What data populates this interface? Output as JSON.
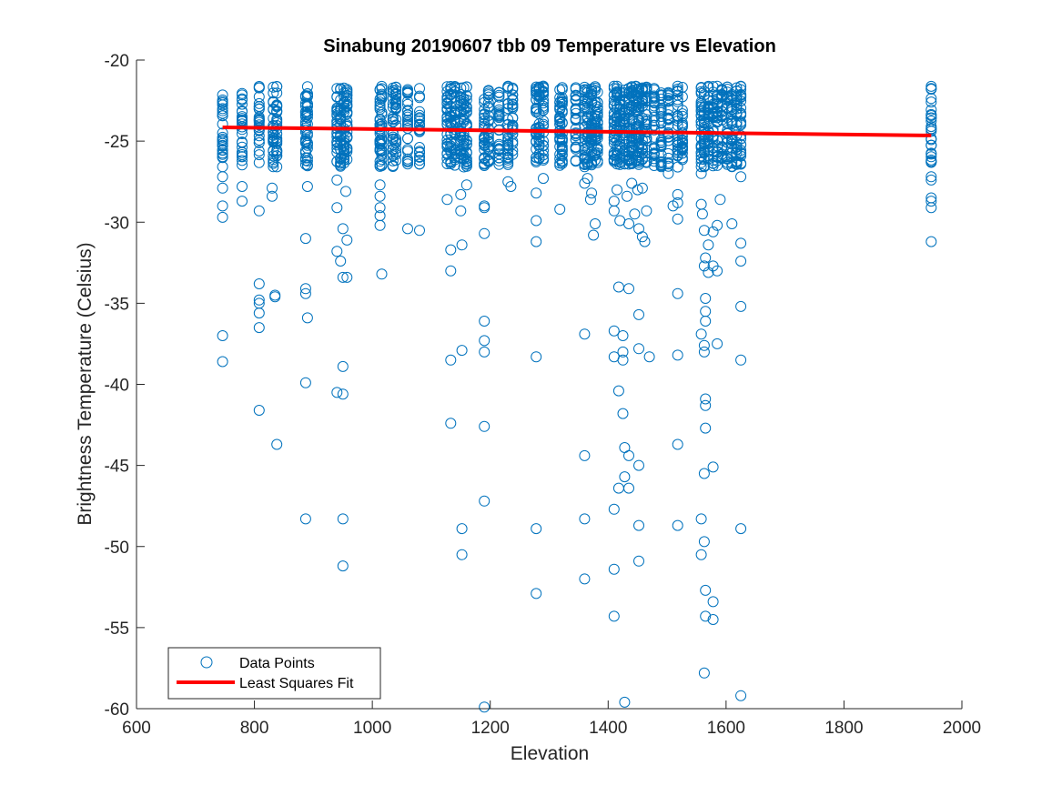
{
  "chart_data": {
    "type": "scatter",
    "title": "Sinabung 20190607 tbb 09 Temperature vs Elevation",
    "xlabel": "Elevation",
    "ylabel": "Brightness Temperature (Celsius)",
    "xlim": [
      600,
      2000
    ],
    "ylim": [
      -60,
      -20
    ],
    "xticks": [
      600,
      800,
      1000,
      1200,
      1400,
      1600,
      1800,
      2000
    ],
    "yticks": [
      -20,
      -25,
      -30,
      -35,
      -40,
      -45,
      -50,
      -55,
      -60
    ],
    "grid": false,
    "legend_position": "bottom-left",
    "colors": {
      "points": "#0072BD",
      "fit": "#FF0000",
      "axes": "#262626"
    },
    "legend": [
      {
        "label": "Data Points",
        "marker": "circle",
        "color": "#0072BD"
      },
      {
        "label": "Least Squares Fit",
        "marker": "line",
        "color": "#FF0000"
      }
    ],
    "fit": {
      "name": "Least Squares Fit",
      "x": [
        746,
        1948
      ],
      "y": [
        -24.15,
        -24.65
      ]
    },
    "dense_band": {
      "y_top": -21.6,
      "y_bottom": -26.6
    },
    "columns": [
      746,
      779,
      808,
      832,
      838,
      887,
      890,
      940,
      946,
      952,
      957,
      1013,
      1016,
      1035,
      1040,
      1060,
      1080,
      1127,
      1133,
      1140,
      1150,
      1155,
      1160,
      1190,
      1197,
      1215,
      1230,
      1238,
      1278,
      1283,
      1290,
      1318,
      1322,
      1345,
      1360,
      1365,
      1372,
      1378,
      1382,
      1410,
      1415,
      1420,
      1428,
      1435,
      1440,
      1447,
      1452,
      1458,
      1465,
      1478,
      1490,
      1502,
      1518,
      1526,
      1558,
      1563,
      1570,
      1578,
      1585,
      1593,
      1602,
      1610,
      1618,
      1625,
      1948
    ],
    "outliers": [
      [
        746,
        -27.2
      ],
      [
        746,
        -27.9
      ],
      [
        746,
        -29.0
      ],
      [
        746,
        -29.7
      ],
      [
        746,
        -37.0
      ],
      [
        746,
        -38.6
      ],
      [
        779,
        -27.8
      ],
      [
        779,
        -28.7
      ],
      [
        808,
        -29.3
      ],
      [
        808,
        -33.8
      ],
      [
        808,
        -34.8
      ],
      [
        808,
        -35.0
      ],
      [
        808,
        -35.6
      ],
      [
        808,
        -36.5
      ],
      [
        808,
        -41.6
      ],
      [
        830,
        -27.9
      ],
      [
        830,
        -28.4
      ],
      [
        835,
        -34.5
      ],
      [
        835,
        -34.6
      ],
      [
        838,
        -43.7
      ],
      [
        887,
        -31.0
      ],
      [
        887,
        -34.1
      ],
      [
        887,
        -34.4
      ],
      [
        887,
        -39.9
      ],
      [
        887,
        -48.3
      ],
      [
        890,
        -27.8
      ],
      [
        890,
        -35.9
      ],
      [
        940,
        -27.4
      ],
      [
        940,
        -29.1
      ],
      [
        940,
        -31.8
      ],
      [
        940,
        -40.5
      ],
      [
        946,
        -32.4
      ],
      [
        950,
        -30.4
      ],
      [
        950,
        -33.4
      ],
      [
        950,
        -38.9
      ],
      [
        950,
        -40.6
      ],
      [
        950,
        -48.3
      ],
      [
        950,
        -51.2
      ],
      [
        955,
        -28.1
      ],
      [
        957,
        -31.1
      ],
      [
        957,
        -33.4
      ],
      [
        1013,
        -27.7
      ],
      [
        1013,
        -28.4
      ],
      [
        1013,
        -29.1
      ],
      [
        1013,
        -29.6
      ],
      [
        1013,
        -30.2
      ],
      [
        1016,
        -33.2
      ],
      [
        1060,
        -30.4
      ],
      [
        1080,
        -30.5
      ],
      [
        1127,
        -28.6
      ],
      [
        1133,
        -31.7
      ],
      [
        1133,
        -33.0
      ],
      [
        1133,
        -38.5
      ],
      [
        1133,
        -42.4
      ],
      [
        1150,
        -28.3
      ],
      [
        1150,
        -29.3
      ],
      [
        1152,
        -31.4
      ],
      [
        1152,
        -37.9
      ],
      [
        1152,
        -48.9
      ],
      [
        1152,
        -50.5
      ],
      [
        1160,
        -27.7
      ],
      [
        1190,
        -29.0
      ],
      [
        1190,
        -29.1
      ],
      [
        1190,
        -30.7
      ],
      [
        1190,
        -36.1
      ],
      [
        1190,
        -37.3
      ],
      [
        1190,
        -38.0
      ],
      [
        1190,
        -42.6
      ],
      [
        1190,
        -47.2
      ],
      [
        1190,
        -59.9
      ],
      [
        1230,
        -27.5
      ],
      [
        1235,
        -27.8
      ],
      [
        1278,
        -28.2
      ],
      [
        1278,
        -29.9
      ],
      [
        1278,
        -31.2
      ],
      [
        1278,
        -38.3
      ],
      [
        1278,
        -48.9
      ],
      [
        1278,
        -52.9
      ],
      [
        1290,
        -27.3
      ],
      [
        1318,
        -29.2
      ],
      [
        1360,
        -27.6
      ],
      [
        1360,
        -36.9
      ],
      [
        1360,
        -44.4
      ],
      [
        1360,
        -48.3
      ],
      [
        1360,
        -52.0
      ],
      [
        1365,
        -27.3
      ],
      [
        1370,
        -28.6
      ],
      [
        1372,
        -28.2
      ],
      [
        1375,
        -30.8
      ],
      [
        1378,
        -30.1
      ],
      [
        1410,
        -28.7
      ],
      [
        1410,
        -29.3
      ],
      [
        1410,
        -36.7
      ],
      [
        1410,
        -38.3
      ],
      [
        1410,
        -47.7
      ],
      [
        1410,
        -51.4
      ],
      [
        1410,
        -54.3
      ],
      [
        1415,
        -28.0
      ],
      [
        1418,
        -34.0
      ],
      [
        1418,
        -40.4
      ],
      [
        1418,
        -46.4
      ],
      [
        1420,
        -29.9
      ],
      [
        1425,
        -37.0
      ],
      [
        1425,
        -38.0
      ],
      [
        1425,
        -38.5
      ],
      [
        1425,
        -41.8
      ],
      [
        1428,
        -45.7
      ],
      [
        1428,
        -43.9
      ],
      [
        1428,
        -59.6
      ],
      [
        1432,
        -28.4
      ],
      [
        1435,
        -30.1
      ],
      [
        1435,
        -34.1
      ],
      [
        1435,
        -44.4
      ],
      [
        1435,
        -46.4
      ],
      [
        1440,
        -27.6
      ],
      [
        1445,
        -29.5
      ],
      [
        1450,
        -28.0
      ],
      [
        1452,
        -30.4
      ],
      [
        1452,
        -35.7
      ],
      [
        1452,
        -37.8
      ],
      [
        1452,
        -45.0
      ],
      [
        1452,
        -48.7
      ],
      [
        1452,
        -50.9
      ],
      [
        1458,
        -27.9
      ],
      [
        1458,
        -30.9
      ],
      [
        1462,
        -31.2
      ],
      [
        1465,
        -29.3
      ],
      [
        1470,
        -38.3
      ],
      [
        1502,
        -27.0
      ],
      [
        1510,
        -29.0
      ],
      [
        1518,
        -28.3
      ],
      [
        1518,
        -29.8
      ],
      [
        1518,
        -34.4
      ],
      [
        1518,
        -38.2
      ],
      [
        1518,
        -43.7
      ],
      [
        1518,
        -48.7
      ],
      [
        1518,
        -28.8
      ],
      [
        1558,
        -27.0
      ],
      [
        1558,
        -28.9
      ],
      [
        1558,
        -36.9
      ],
      [
        1558,
        -48.3
      ],
      [
        1558,
        -50.5
      ],
      [
        1560,
        -29.5
      ],
      [
        1563,
        -30.5
      ],
      [
        1563,
        -32.7
      ],
      [
        1563,
        -37.6
      ],
      [
        1563,
        -38.0
      ],
      [
        1563,
        -45.5
      ],
      [
        1563,
        -49.7
      ],
      [
        1563,
        -57.8
      ],
      [
        1565,
        -32.2
      ],
      [
        1565,
        -34.7
      ],
      [
        1565,
        -35.5
      ],
      [
        1565,
        -36.1
      ],
      [
        1565,
        -40.9
      ],
      [
        1565,
        -41.3
      ],
      [
        1565,
        -42.7
      ],
      [
        1565,
        -52.7
      ],
      [
        1565,
        -54.3
      ],
      [
        1570,
        -31.4
      ],
      [
        1570,
        -33.1
      ],
      [
        1578,
        -30.6
      ],
      [
        1578,
        -32.7
      ],
      [
        1578,
        -45.1
      ],
      [
        1578,
        -53.4
      ],
      [
        1578,
        -54.5
      ],
      [
        1585,
        -30.2
      ],
      [
        1585,
        -33.0
      ],
      [
        1585,
        -37.5
      ],
      [
        1590,
        -28.6
      ],
      [
        1610,
        -30.1
      ],
      [
        1625,
        -27.2
      ],
      [
        1625,
        -31.3
      ],
      [
        1625,
        -32.4
      ],
      [
        1625,
        -35.2
      ],
      [
        1625,
        -38.5
      ],
      [
        1625,
        -48.9
      ],
      [
        1625,
        -59.2
      ],
      [
        1948,
        -27.2
      ],
      [
        1948,
        -27.4
      ],
      [
        1948,
        -28.5
      ],
      [
        1948,
        -28.7
      ],
      [
        1948,
        -29.1
      ],
      [
        1948,
        -31.2
      ]
    ]
  }
}
